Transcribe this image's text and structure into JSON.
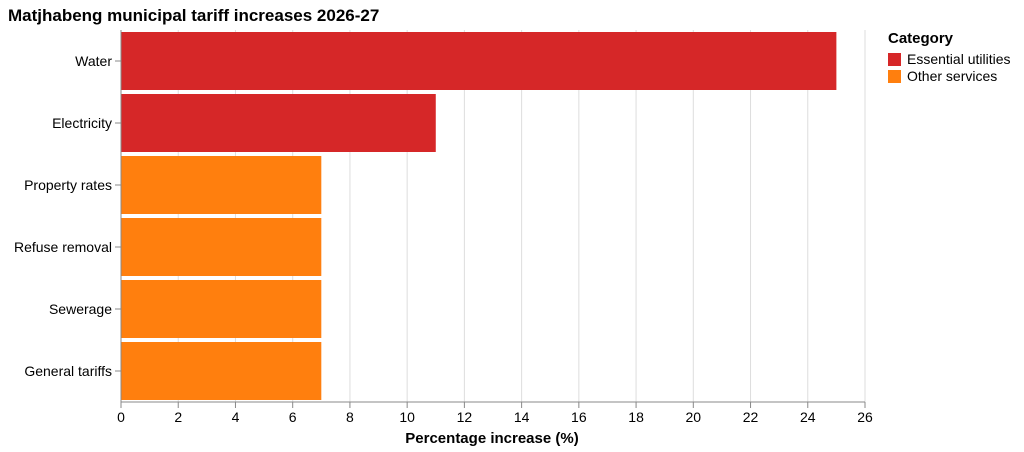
{
  "chart_data": {
    "type": "bar",
    "orientation": "horizontal",
    "title": "Matjhabeng municipal tariff increases 2026-27",
    "xlabel": "Percentage increase (%)",
    "ylabel": "",
    "xlim": [
      0,
      26
    ],
    "x_ticks": [
      0,
      2,
      4,
      6,
      8,
      10,
      12,
      14,
      16,
      18,
      20,
      22,
      24,
      26
    ],
    "grid": true,
    "legend_position": "top-right",
    "legend_title": "Category",
    "legend": [
      {
        "label": "Essential utilities",
        "color": "#d62728"
      },
      {
        "label": "Other services",
        "color": "#ff7f0e"
      }
    ],
    "bars": [
      {
        "category": "Water",
        "value": 25,
        "group": "Essential utilities"
      },
      {
        "category": "Electricity",
        "value": 11,
        "group": "Essential utilities"
      },
      {
        "category": "Property rates",
        "value": 7,
        "group": "Other services"
      },
      {
        "category": "Refuse removal",
        "value": 7,
        "group": "Other services"
      },
      {
        "category": "Sewerage",
        "value": 7,
        "group": "Other services"
      },
      {
        "category": "General tariffs",
        "value": 7,
        "group": "Other services"
      }
    ]
  }
}
